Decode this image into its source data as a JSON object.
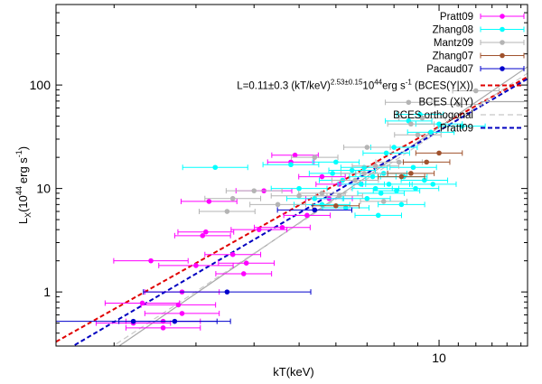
{
  "chart_data": {
    "type": "scatter",
    "xlabel": "kT(keV)",
    "ylabel": "L",
    "ylabel_sub": "X",
    "ylabel_unit_prefix": "(10",
    "ylabel_unit_exp": "44",
    "ylabel_unit_mid": "erg s",
    "ylabel_unit_exp2": "-1",
    "ylabel_unit_suffix": ")",
    "xscale": "log",
    "yscale": "log",
    "xlim": [
      1.5,
      15.5
    ],
    "ylim": [
      0.3,
      600
    ],
    "x_ticks": [
      {
        "value": 10,
        "label": "10"
      }
    ],
    "y_ticks": [
      {
        "value": 1,
        "label": "1"
      },
      {
        "value": 10,
        "label": "10"
      },
      {
        "value": 100,
        "label": "100"
      }
    ],
    "legend_position": "top-right",
    "series": [
      {
        "name": "Pratt09",
        "kind": "points",
        "color": "#ff00ff",
        "points": [
          [
            2.2,
            0.5,
            0.08
          ],
          [
            2.3,
            0.78,
            0.08
          ],
          [
            2.4,
            2.0,
            0.08
          ],
          [
            2.55,
            0.45,
            0.08
          ],
          [
            2.55,
            0.52,
            0.08
          ],
          [
            2.75,
            0.75,
            0.08
          ],
          [
            2.8,
            1.0,
            0.08
          ],
          [
            2.8,
            0.62,
            0.08
          ],
          [
            3.0,
            1.8,
            0.08
          ],
          [
            3.1,
            3.5,
            0.06
          ],
          [
            3.15,
            3.8,
            0.06
          ],
          [
            3.2,
            7.5,
            0.06
          ],
          [
            3.6,
            2.3,
            0.06
          ],
          [
            3.8,
            1.5,
            0.06
          ],
          [
            3.85,
            1.9,
            0.06
          ],
          [
            4.1,
            4.0,
            0.06
          ],
          [
            4.2,
            9.5,
            0.06
          ],
          [
            4.6,
            4.2,
            0.06
          ],
          [
            4.8,
            18.0,
            0.05
          ],
          [
            4.9,
            21.0,
            0.05
          ],
          [
            5.2,
            5.5,
            0.05
          ],
          [
            5.6,
            13.0,
            0.05
          ],
          [
            5.8,
            8.0,
            0.05
          ],
          [
            6.1,
            11.0,
            0.05
          ]
        ]
      },
      {
        "name": "Zhang08",
        "kind": "points",
        "color": "#00ffff",
        "points": [
          [
            3.3,
            16.0,
            0.07
          ],
          [
            4.8,
            17.0,
            0.06
          ],
          [
            5.0,
            10.0,
            0.06
          ],
          [
            5.4,
            8.0,
            0.06
          ],
          [
            5.6,
            7.0,
            0.06
          ],
          [
            5.9,
            14.0,
            0.05
          ],
          [
            6.2,
            12.0,
            0.05
          ],
          [
            6.3,
            6.5,
            0.05
          ],
          [
            6.5,
            15.0,
            0.05
          ],
          [
            6.8,
            11.0,
            0.05
          ],
          [
            6.9,
            16.0,
            0.05
          ],
          [
            7.0,
            8.0,
            0.05
          ],
          [
            7.2,
            13.0,
            0.05
          ],
          [
            7.3,
            10.0,
            0.05
          ],
          [
            7.5,
            9.0,
            0.05
          ],
          [
            7.6,
            14.0,
            0.05
          ],
          [
            7.7,
            22.0,
            0.05
          ],
          [
            7.8,
            11.0,
            0.05
          ],
          [
            8.0,
            25.0,
            0.05
          ],
          [
            8.1,
            9.5,
            0.05
          ],
          [
            8.3,
            7.0,
            0.05
          ],
          [
            8.4,
            13.0,
            0.05
          ],
          [
            8.6,
            45.0,
            0.05
          ],
          [
            8.8,
            16.0,
            0.05
          ],
          [
            8.9,
            10.0,
            0.05
          ],
          [
            9.1,
            52.0,
            0.05
          ],
          [
            9.3,
            12.0,
            0.05
          ],
          [
            9.6,
            35.0,
            0.05
          ],
          [
            9.7,
            11.0,
            0.05
          ],
          [
            10.0,
            42.0,
            0.05
          ],
          [
            11.2,
            40.0,
            0.05
          ],
          [
            7.4,
            5.5,
            0.05
          ],
          [
            6.0,
            18.0,
            0.05
          ]
        ]
      },
      {
        "name": "Mantz09",
        "kind": "points",
        "color": "#b4b4b4",
        "points": [
          [
            3.5,
            6.0,
            0.06
          ],
          [
            3.6,
            8.0,
            0.06
          ],
          [
            4.0,
            9.5,
            0.06
          ],
          [
            4.5,
            7.0,
            0.06
          ],
          [
            5.0,
            8.5,
            0.06
          ],
          [
            5.4,
            20.0,
            0.05
          ],
          [
            5.6,
            9.0,
            0.05
          ],
          [
            6.1,
            8.5,
            0.05
          ],
          [
            6.6,
            12.0,
            0.05
          ],
          [
            7.0,
            25.0,
            0.05
          ],
          [
            7.6,
            7.5,
            0.05
          ],
          [
            8.2,
            18.0,
            0.05
          ],
          [
            8.6,
            68.0,
            0.05
          ],
          [
            8.7,
            42.0,
            0.05
          ],
          [
            9.0,
            33.0,
            0.05
          ],
          [
            9.2,
            48.0,
            0.05
          ],
          [
            11.0,
            65.0,
            0.05
          ],
          [
            12.0,
            88.0,
            0.05
          ],
          [
            6.9,
            14.0,
            0.05
          ],
          [
            7.3,
            16.5,
            0.05
          ]
        ]
      },
      {
        "name": "Zhang07",
        "kind": "points",
        "color": "#a0522d",
        "points": [
          [
            6.0,
            6.8,
            0.05
          ],
          [
            8.3,
            13.0,
            0.05
          ],
          [
            8.7,
            14.0,
            0.05
          ],
          [
            9.4,
            18.0,
            0.05
          ],
          [
            10.0,
            22.0,
            0.05
          ]
        ]
      },
      {
        "name": "Pacaud07",
        "kind": "points",
        "color": "#0000cc",
        "points": [
          [
            2.2,
            0.52,
            0.18
          ],
          [
            2.7,
            0.52,
            0.12
          ],
          [
            3.5,
            1.0,
            0.18
          ],
          [
            5.4,
            6.2,
            0.08
          ]
        ]
      },
      {
        "name": "L=0.11±0.3 (kT/keV)",
        "name_exp": "2.53±0.15",
        "name_tail": "10",
        "name_tail_exp": "44",
        "name_unit": "erg s",
        "name_unit_exp": "-1",
        "name_method": "(BCES(Y|X))",
        "kind": "line",
        "color": "#e00000",
        "dash": "5,3",
        "x": [
          1.5,
          15.5
        ],
        "y": [
          0.33,
          120
        ]
      },
      {
        "name": "BCES (X|Y)",
        "kind": "line",
        "color": "#a8a8a8",
        "dash": "",
        "x": [
          1.5,
          15.5
        ],
        "y": [
          0.115,
          150
        ]
      },
      {
        "name": "BCES orthogonal",
        "kind": "line",
        "color": "#c8c8c8",
        "dash": "6,4",
        "x": [
          1.5,
          15.5
        ],
        "y": [
          0.13,
          130
        ]
      },
      {
        "name": "Pratt09",
        "kind": "line",
        "color": "#0000c0",
        "dash": "5,3",
        "x": [
          1.5,
          15.5
        ],
        "y": [
          0.24,
          115
        ]
      }
    ]
  }
}
